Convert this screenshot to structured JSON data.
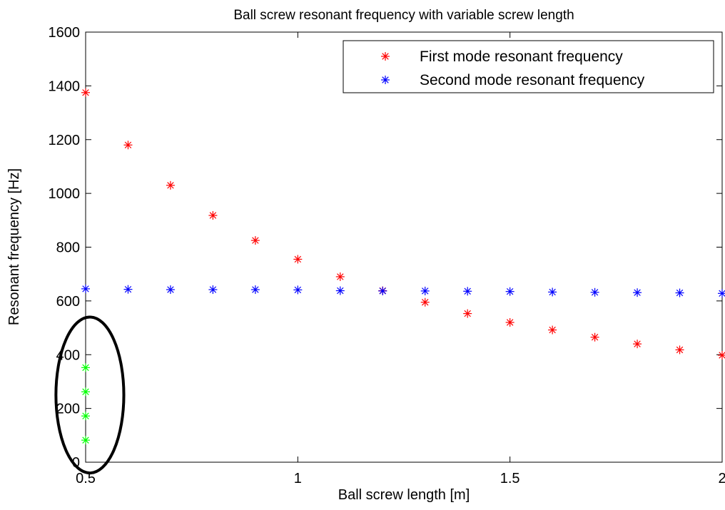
{
  "chart_data": {
    "type": "scatter",
    "title": "Ball screw resonant frequency with variable screw length",
    "xlabel": "Ball screw length [m]",
    "ylabel": "Resonant frequency [Hz]",
    "xlim": [
      0.5,
      2
    ],
    "ylim": [
      0,
      1600
    ],
    "xticks": [
      0.5,
      1,
      1.5,
      2
    ],
    "xtick_labels": [
      "0.5",
      "1",
      "1.5",
      "2"
    ],
    "yticks": [
      0,
      200,
      400,
      600,
      800,
      1000,
      1200,
      1400,
      1600
    ],
    "ytick_labels": [
      "0",
      "200",
      "400",
      "600",
      "800",
      "1000",
      "1200",
      "1400",
      "1600"
    ],
    "grid": false,
    "legend_position": "top-right",
    "marker": "asterisk",
    "series": [
      {
        "name": "First mode resonant frequency",
        "color": "#ff0000",
        "x": [
          0.5,
          0.6,
          0.7,
          0.8,
          0.9,
          1.0,
          1.1,
          1.2,
          1.3,
          1.4,
          1.5,
          1.6,
          1.7,
          1.8,
          1.9,
          2.0
        ],
        "y": [
          1375,
          1180,
          1030,
          918,
          825,
          755,
          690,
          638,
          595,
          553,
          520,
          492,
          465,
          440,
          418,
          398
        ]
      },
      {
        "name": "Second mode resonant frequency",
        "color": "#0000ff",
        "x": [
          0.5,
          0.6,
          0.7,
          0.8,
          0.9,
          1.0,
          1.1,
          1.2,
          1.3,
          1.4,
          1.5,
          1.6,
          1.7,
          1.8,
          1.9,
          2.0
        ],
        "y": [
          645,
          643,
          642,
          642,
          642,
          641,
          638,
          637,
          637,
          636,
          635,
          633,
          632,
          631,
          630,
          628
        ]
      },
      {
        "color": "#00ff00",
        "x": [
          0.5,
          0.5,
          0.5,
          0.5
        ],
        "y": [
          352,
          262,
          172,
          82
        ]
      }
    ],
    "annotations": [
      {
        "type": "ellipse",
        "color": "#000000",
        "center": [
          0.51,
          250
        ],
        "rx_data": 0.08,
        "ry_data": 290
      }
    ]
  }
}
